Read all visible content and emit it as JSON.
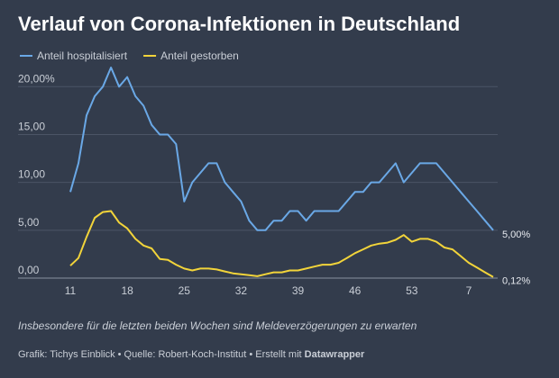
{
  "chart_data": {
    "type": "line",
    "title": "Verlauf von Corona-Infektionen in Deutschland",
    "subtitle": "Insbesondere für die letzten beiden Wochen sind Meldeverzögerungen zu erwarten",
    "source": "Grafik: Tichys Einblick • Quelle: Robert-Koch-Institut • Erstellt mit ",
    "credit": "Datawrapper",
    "categories": [
      "11",
      null,
      null,
      null,
      null,
      null,
      null,
      "18",
      null,
      null,
      null,
      null,
      null,
      null,
      "25",
      null,
      null,
      null,
      null,
      null,
      null,
      "32",
      null,
      null,
      null,
      null,
      null,
      null,
      "39",
      null,
      null,
      null,
      null,
      null,
      null,
      "46",
      null,
      null,
      null,
      null,
      null,
      null,
      "53",
      null,
      null,
      null,
      null,
      null,
      null,
      "7",
      null,
      null,
      null
    ],
    "series": [
      {
        "name": "Anteil hospitalisiert",
        "color": "#6aa8e6",
        "values": [
          9,
          12,
          17,
          19,
          20,
          22,
          20,
          21,
          19,
          18,
          16,
          15,
          15,
          14,
          8,
          10,
          11,
          12,
          12,
          10,
          9,
          8,
          6,
          5,
          5,
          6,
          6,
          7,
          7,
          6,
          7,
          7,
          7,
          7,
          8,
          9,
          9,
          10,
          10,
          11,
          12,
          10,
          11,
          12,
          12,
          12,
          11,
          10,
          9,
          8,
          7,
          6,
          5
        ],
        "value_labels": [
          null,
          null,
          null,
          null,
          null,
          null,
          null,
          null,
          null,
          null,
          null,
          null,
          null,
          null,
          null,
          null,
          null,
          null,
          null,
          null,
          null,
          null,
          null,
          null,
          null,
          null,
          null,
          null,
          null,
          null,
          null,
          null,
          null,
          null,
          null,
          null,
          null,
          null,
          null,
          null,
          null,
          null,
          null,
          null,
          null,
          null,
          null,
          null,
          null,
          null,
          null,
          null,
          "5,00%"
        ]
      },
      {
        "name": "Anteil gestorben",
        "color": "#f2d43a",
        "values": [
          1.3,
          2.1,
          4.3,
          6.3,
          6.9,
          7.0,
          5.8,
          5.2,
          4.1,
          3.4,
          3.1,
          2.0,
          1.9,
          1.4,
          1.0,
          0.8,
          1.0,
          1.0,
          0.9,
          0.7,
          0.5,
          0.4,
          0.3,
          0.2,
          0.4,
          0.6,
          0.6,
          0.8,
          0.8,
          1.0,
          1.2,
          1.4,
          1.4,
          1.6,
          2.1,
          2.6,
          3.0,
          3.4,
          3.6,
          3.7,
          4.0,
          4.5,
          3.8,
          4.1,
          4.1,
          3.8,
          3.2,
          3.0,
          2.3,
          1.6,
          1.1,
          0.6,
          0.12
        ],
        "value_labels": [
          null,
          null,
          null,
          null,
          null,
          null,
          null,
          null,
          null,
          null,
          null,
          null,
          null,
          null,
          null,
          null,
          null,
          null,
          null,
          null,
          null,
          null,
          null,
          null,
          null,
          null,
          null,
          null,
          null,
          null,
          null,
          null,
          null,
          null,
          null,
          null,
          null,
          null,
          null,
          null,
          null,
          null,
          null,
          null,
          null,
          null,
          null,
          null,
          null,
          null,
          null,
          null,
          "0,12%"
        ]
      }
    ],
    "ylim": [
      0,
      22
    ],
    "yticks": [
      {
        "value": 0,
        "label": "0,00"
      },
      {
        "value": 5,
        "label": "5,00"
      },
      {
        "value": 10,
        "label": "10,00"
      },
      {
        "value": 15,
        "label": "15,00"
      },
      {
        "value": 20,
        "label": "20,00%"
      }
    ],
    "grid": true
  }
}
